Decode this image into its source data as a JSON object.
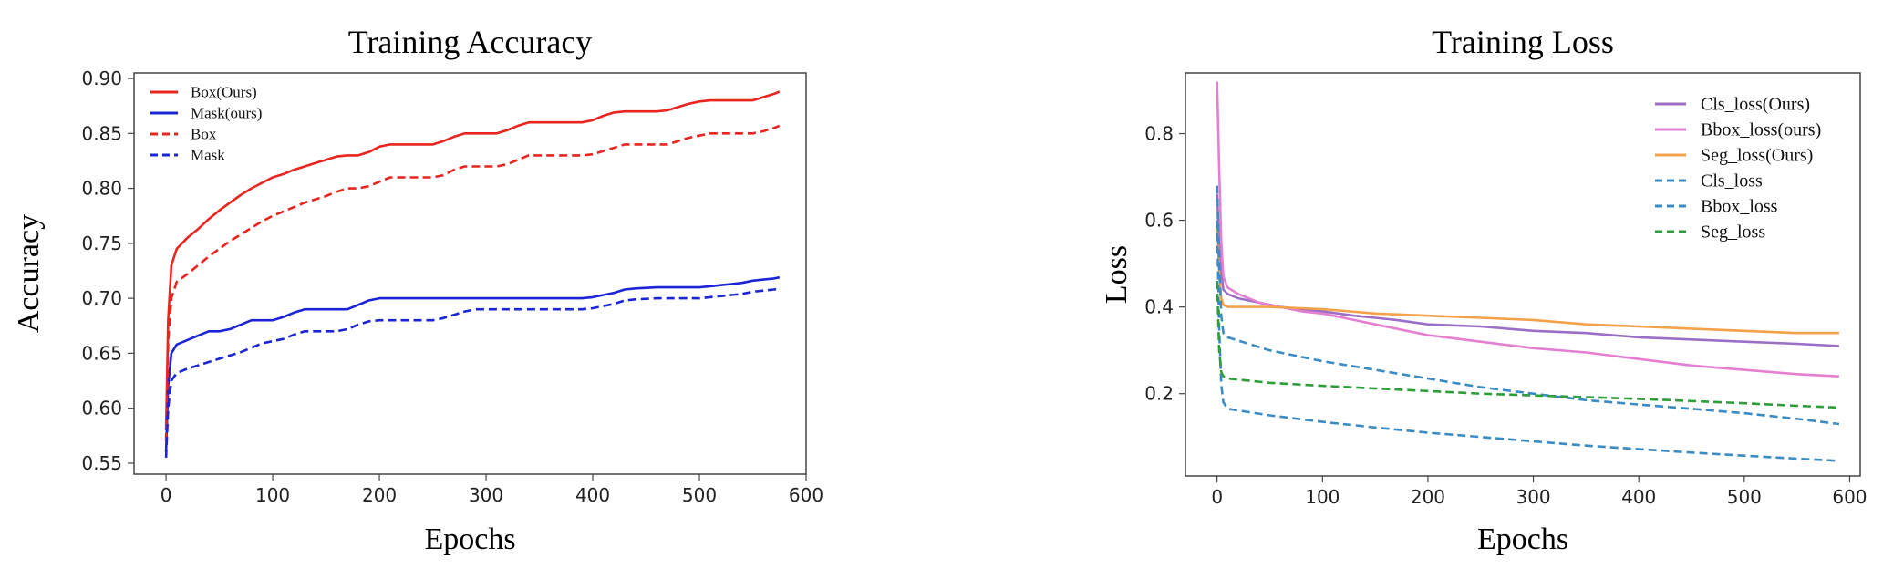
{
  "chart_data": [
    {
      "type": "line",
      "title": "Training Accuracy",
      "xlabel": "Epochs",
      "ylabel": "Accuracy",
      "xlim": [
        -30,
        600
      ],
      "ylim": [
        0.54,
        0.905
      ],
      "xticks": [
        0,
        100,
        200,
        300,
        400,
        500,
        600
      ],
      "yticks": [
        0.55,
        0.6,
        0.65,
        0.7,
        0.75,
        0.8,
        0.85,
        0.9
      ],
      "ytick_labels": [
        "0.55",
        "0.60",
        "0.65",
        "0.70",
        "0.75",
        "0.80",
        "0.85",
        "0.90"
      ],
      "grid": false,
      "legend_position": "top-left",
      "series": [
        {
          "name": "Box(Ours)",
          "color": "#e8251f",
          "dash": "solid",
          "x": [
            0,
            2,
            5,
            10,
            20,
            30,
            40,
            50,
            60,
            70,
            80,
            90,
            100,
            110,
            120,
            130,
            140,
            150,
            160,
            170,
            180,
            190,
            200,
            210,
            220,
            230,
            240,
            250,
            260,
            270,
            280,
            290,
            300,
            310,
            320,
            330,
            340,
            350,
            360,
            370,
            380,
            390,
            400,
            410,
            420,
            430,
            440,
            450,
            460,
            470,
            480,
            490,
            500,
            510,
            520,
            530,
            540,
            550,
            560,
            570,
            575
          ],
          "y": [
            0.58,
            0.68,
            0.73,
            0.745,
            0.755,
            0.763,
            0.772,
            0.78,
            0.787,
            0.794,
            0.8,
            0.805,
            0.81,
            0.813,
            0.817,
            0.82,
            0.823,
            0.826,
            0.829,
            0.83,
            0.83,
            0.833,
            0.838,
            0.84,
            0.84,
            0.84,
            0.84,
            0.84,
            0.843,
            0.847,
            0.85,
            0.85,
            0.85,
            0.85,
            0.853,
            0.857,
            0.86,
            0.86,
            0.86,
            0.86,
            0.86,
            0.86,
            0.862,
            0.866,
            0.869,
            0.87,
            0.87,
            0.87,
            0.87,
            0.871,
            0.874,
            0.877,
            0.879,
            0.88,
            0.88,
            0.88,
            0.88,
            0.88,
            0.883,
            0.886,
            0.888
          ]
        },
        {
          "name": "Mask(ours)",
          "color": "#1c25d6",
          "dash": "solid",
          "x": [
            0,
            2,
            5,
            10,
            20,
            30,
            40,
            50,
            60,
            70,
            80,
            90,
            100,
            110,
            120,
            130,
            140,
            150,
            160,
            170,
            180,
            190,
            200,
            250,
            300,
            350,
            390,
            400,
            410,
            420,
            430,
            440,
            460,
            480,
            500,
            510,
            520,
            530,
            540,
            550,
            560,
            570,
            575
          ],
          "y": [
            0.56,
            0.62,
            0.65,
            0.658,
            0.662,
            0.666,
            0.67,
            0.67,
            0.672,
            0.676,
            0.68,
            0.68,
            0.68,
            0.683,
            0.687,
            0.69,
            0.69,
            0.69,
            0.69,
            0.69,
            0.694,
            0.698,
            0.7,
            0.7,
            0.7,
            0.7,
            0.7,
            0.701,
            0.703,
            0.705,
            0.708,
            0.709,
            0.71,
            0.71,
            0.71,
            0.711,
            0.712,
            0.713,
            0.714,
            0.716,
            0.717,
            0.718,
            0.719
          ]
        },
        {
          "name": "Box",
          "color": "#e8251f",
          "dash": "dashed",
          "x": [
            0,
            2,
            5,
            10,
            20,
            30,
            40,
            50,
            60,
            70,
            80,
            90,
            100,
            110,
            120,
            130,
            140,
            150,
            160,
            170,
            180,
            190,
            200,
            210,
            220,
            230,
            240,
            250,
            260,
            270,
            280,
            290,
            300,
            310,
            320,
            330,
            340,
            350,
            360,
            370,
            380,
            390,
            400,
            410,
            420,
            430,
            440,
            450,
            460,
            470,
            480,
            490,
            500,
            510,
            520,
            530,
            540,
            550,
            560,
            570,
            575
          ],
          "y": [
            0.57,
            0.66,
            0.7,
            0.715,
            0.722,
            0.73,
            0.738,
            0.745,
            0.752,
            0.758,
            0.764,
            0.77,
            0.775,
            0.779,
            0.783,
            0.787,
            0.79,
            0.793,
            0.797,
            0.8,
            0.8,
            0.802,
            0.806,
            0.81,
            0.81,
            0.81,
            0.81,
            0.81,
            0.812,
            0.817,
            0.82,
            0.82,
            0.82,
            0.82,
            0.822,
            0.826,
            0.83,
            0.83,
            0.83,
            0.83,
            0.83,
            0.83,
            0.831,
            0.834,
            0.837,
            0.84,
            0.84,
            0.84,
            0.84,
            0.84,
            0.843,
            0.846,
            0.848,
            0.85,
            0.85,
            0.85,
            0.85,
            0.85,
            0.852,
            0.855,
            0.857
          ]
        },
        {
          "name": "Mask",
          "color": "#1c25d6",
          "dash": "dashed",
          "x": [
            0,
            2,
            5,
            10,
            20,
            30,
            40,
            50,
            60,
            70,
            80,
            90,
            100,
            110,
            120,
            130,
            140,
            150,
            160,
            170,
            180,
            190,
            200,
            250,
            260,
            270,
            280,
            290,
            300,
            350,
            390,
            400,
            410,
            420,
            430,
            440,
            460,
            480,
            500,
            510,
            520,
            530,
            540,
            550,
            560,
            570,
            575
          ],
          "y": [
            0.555,
            0.6,
            0.625,
            0.632,
            0.636,
            0.639,
            0.642,
            0.645,
            0.648,
            0.651,
            0.655,
            0.659,
            0.661,
            0.663,
            0.667,
            0.67,
            0.67,
            0.67,
            0.67,
            0.672,
            0.676,
            0.679,
            0.68,
            0.68,
            0.682,
            0.685,
            0.688,
            0.69,
            0.69,
            0.69,
            0.69,
            0.691,
            0.693,
            0.695,
            0.698,
            0.699,
            0.7,
            0.7,
            0.7,
            0.701,
            0.702,
            0.703,
            0.704,
            0.706,
            0.707,
            0.708,
            0.709
          ]
        }
      ]
    },
    {
      "type": "line",
      "title": "Training Loss",
      "xlabel": "Epochs",
      "ylabel": "Loss",
      "xlim": [
        -30,
        610
      ],
      "ylim": [
        0.01,
        0.94
      ],
      "xticks": [
        0,
        100,
        200,
        300,
        400,
        500,
        600
      ],
      "yticks": [
        0.2,
        0.4,
        0.6,
        0.8
      ],
      "ytick_labels": [
        "0.2",
        "0.4",
        "0.6",
        "0.8"
      ],
      "grid": false,
      "legend_position": "top-right",
      "series": [
        {
          "name": "Cls_loss(Ours)",
          "color": "#9b6fc6",
          "dash": "solid",
          "x": [
            0,
            3,
            6,
            10,
            20,
            30,
            40,
            50,
            60,
            80,
            100,
            130,
            150,
            170,
            200,
            250,
            300,
            350,
            400,
            450,
            500,
            550,
            590
          ],
          "y": [
            0.66,
            0.5,
            0.44,
            0.43,
            0.42,
            0.415,
            0.41,
            0.405,
            0.4,
            0.395,
            0.39,
            0.38,
            0.375,
            0.37,
            0.36,
            0.355,
            0.345,
            0.34,
            0.33,
            0.325,
            0.32,
            0.315,
            0.31
          ]
        },
        {
          "name": "Bbox_loss(ours)",
          "color": "#e47fd1",
          "dash": "solid",
          "x": [
            0,
            2,
            4,
            6,
            10,
            20,
            30,
            40,
            60,
            80,
            100,
            130,
            150,
            180,
            200,
            250,
            300,
            350,
            400,
            450,
            500,
            550,
            590
          ],
          "y": [
            0.92,
            0.72,
            0.55,
            0.47,
            0.445,
            0.43,
            0.42,
            0.41,
            0.4,
            0.39,
            0.385,
            0.37,
            0.36,
            0.345,
            0.335,
            0.32,
            0.305,
            0.295,
            0.28,
            0.265,
            0.255,
            0.245,
            0.24
          ]
        },
        {
          "name": "Seg_loss(Ours)",
          "color": "#f5a14a",
          "dash": "solid",
          "x": [
            0,
            2,
            4,
            6,
            10,
            50,
            100,
            150,
            200,
            250,
            300,
            350,
            400,
            450,
            500,
            550,
            590
          ],
          "y": [
            0.6,
            0.48,
            0.42,
            0.405,
            0.4,
            0.4,
            0.395,
            0.385,
            0.38,
            0.375,
            0.37,
            0.36,
            0.355,
            0.35,
            0.345,
            0.34,
            0.34
          ]
        },
        {
          "name": "Cls_loss",
          "color": "#3b8bc4",
          "dash": "dashed",
          "x": [
            0,
            2,
            4,
            6,
            10,
            50,
            100,
            150,
            200,
            250,
            300,
            350,
            400,
            450,
            500,
            550,
            590
          ],
          "y": [
            0.68,
            0.5,
            0.38,
            0.34,
            0.33,
            0.3,
            0.275,
            0.255,
            0.235,
            0.215,
            0.2,
            0.185,
            0.175,
            0.165,
            0.155,
            0.142,
            0.13
          ]
        },
        {
          "name": "Bbox_loss",
          "color": "#3b8bc4",
          "dash": "dashed",
          "x": [
            0,
            2,
            4,
            6,
            10,
            50,
            100,
            150,
            200,
            250,
            300,
            350,
            400,
            450,
            500,
            550,
            590
          ],
          "y": [
            0.6,
            0.35,
            0.22,
            0.18,
            0.165,
            0.15,
            0.135,
            0.122,
            0.11,
            0.1,
            0.09,
            0.08,
            0.072,
            0.064,
            0.057,
            0.05,
            0.045
          ]
        },
        {
          "name": "Seg_loss",
          "color": "#2e9e3a",
          "dash": "dashed",
          "x": [
            0,
            2,
            4,
            6,
            10,
            50,
            100,
            150,
            200,
            250,
            300,
            350,
            400,
            450,
            500,
            550,
            590
          ],
          "y": [
            0.46,
            0.3,
            0.25,
            0.24,
            0.235,
            0.225,
            0.218,
            0.212,
            0.206,
            0.2,
            0.196,
            0.192,
            0.188,
            0.183,
            0.178,
            0.172,
            0.168
          ]
        }
      ]
    }
  ]
}
